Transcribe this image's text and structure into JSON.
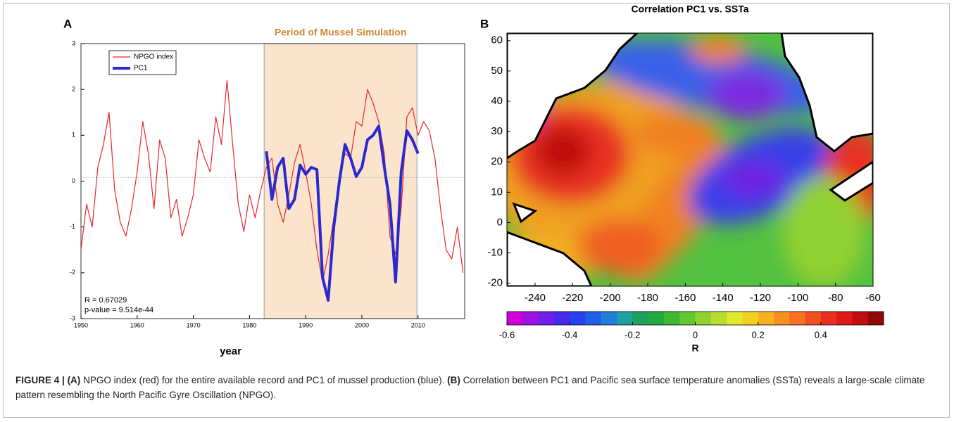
{
  "chart_data": [
    {
      "type": "line",
      "panel_label": "A",
      "xlabel": "year",
      "xlim": [
        1950,
        2018.3
      ],
      "ylim": [
        -3,
        3
      ],
      "xticks": [
        1950,
        1960,
        1970,
        1980,
        1990,
        2000,
        2010
      ],
      "yticks": [
        -3,
        -2,
        -1,
        0,
        1,
        2,
        3
      ],
      "reference_line": 0.08,
      "shaded_period": [
        1982.6,
        2009.8
      ],
      "shaded_label": "Period of Mussel Simulation",
      "annotations": [
        "R = 0.67029",
        "p-value = 9.514e-44"
      ],
      "series": [
        {
          "name": "NPGO index",
          "color": "#e8262a",
          "x": [
            1950,
            1951,
            1952,
            1953,
            1954,
            1955,
            1956,
            1957,
            1958,
            1959,
            1960,
            1961,
            1962,
            1963,
            1964,
            1965,
            1966,
            1967,
            1968,
            1969,
            1970,
            1971,
            1972,
            1973,
            1974,
            1975,
            1976,
            1977,
            1978,
            1979,
            1980,
            1981,
            1982,
            1983,
            1984,
            1985,
            1986,
            1987,
            1988,
            1989,
            1990,
            1991,
            1992,
            1993,
            1994,
            1995,
            1996,
            1997,
            1998,
            1999,
            2000,
            2001,
            2002,
            2003,
            2004,
            2005,
            2006,
            2007,
            2008,
            2009,
            2010,
            2011,
            2012,
            2013,
            2014,
            2015,
            2016,
            2017,
            2018
          ],
          "values": [
            -1.5,
            -0.5,
            -1.0,
            0.3,
            0.8,
            1.5,
            -0.2,
            -0.9,
            -1.2,
            -0.6,
            0.2,
            1.3,
            0.6,
            -0.6,
            0.9,
            0.5,
            -0.8,
            -0.4,
            -1.2,
            -0.8,
            -0.3,
            0.9,
            0.5,
            0.2,
            1.4,
            0.8,
            2.2,
            0.8,
            -0.5,
            -1.1,
            -0.3,
            -0.8,
            -0.2,
            0.3,
            0.5,
            -0.5,
            -0.9,
            -0.3,
            0.4,
            0.8,
            0.2,
            -0.5,
            -1.5,
            -2.2,
            -1.6,
            -0.8,
            0.1,
            0.6,
            0.5,
            1.3,
            1.2,
            2.0,
            1.7,
            1.3,
            0.6,
            -1.2,
            -1.6,
            -0.6,
            1.4,
            1.6,
            1.0,
            1.3,
            1.1,
            0.5,
            -0.6,
            -1.5,
            -1.7,
            -1.0,
            -2.0
          ]
        },
        {
          "name": "PC1",
          "color": "#2a2ad0",
          "x": [
            1983,
            1984,
            1985,
            1986,
            1987,
            1988,
            1989,
            1990,
            1991,
            1992,
            1993,
            1994,
            1995,
            1996,
            1997,
            1998,
            1999,
            2000,
            2001,
            2002,
            2003,
            2004,
            2005,
            2006,
            2007,
            2008,
            2009,
            2010
          ],
          "values": [
            0.65,
            -0.4,
            0.3,
            0.5,
            -0.6,
            -0.4,
            0.35,
            0.15,
            0.3,
            0.25,
            -2.1,
            -2.6,
            -1.0,
            0.0,
            0.8,
            0.5,
            0.1,
            0.3,
            0.9,
            1.0,
            1.2,
            0.3,
            -0.5,
            -2.2,
            0.2,
            1.1,
            0.9,
            0.6
          ]
        }
      ]
    },
    {
      "type": "map",
      "panel_label": "B",
      "title": "Correlation PC1 vs. SSTa",
      "xlim": [
        -255,
        -60
      ],
      "ylim": [
        -21,
        62.5
      ],
      "xticks": [
        -240,
        -220,
        -200,
        -180,
        -160,
        -140,
        -120,
        -100,
        -80,
        -60
      ],
      "yticks": [
        -20,
        -10,
        0,
        10,
        20,
        30,
        40,
        50,
        60
      ],
      "colorbar": {
        "label": "R",
        "lim": [
          -0.6,
          0.6
        ],
        "ticks": [
          -0.6,
          -0.4,
          -0.2,
          0,
          0.2,
          0.4
        ],
        "colors": [
          "#d000d8",
          "#a010e0",
          "#7020e8",
          "#4a2ae8",
          "#2a40f0",
          "#1e60e8",
          "#1e80d8",
          "#1ea0a0",
          "#20a060",
          "#20a840",
          "#40b830",
          "#60c830",
          "#90d030",
          "#b8dc30",
          "#e0e830",
          "#f0d020",
          "#f8b020",
          "#f89020",
          "#f87020",
          "#f05020",
          "#e83020",
          "#e01818",
          "#c00e0e",
          "#900808"
        ]
      }
    }
  ],
  "caption": {
    "figure_label": "FIGURE 4 |",
    "a_label": "(A)",
    "a_text": " NPGO index (red) for the entire available record and PC1 of mussel production (blue). ",
    "b_label": "(B)",
    "b_text": " Correlation between PC1 and Pacific sea surface temperature anomalies (SSTa) reveals a large-scale climate pattern resembling the North Pacific Gyre Oscillation (NPGO)."
  }
}
